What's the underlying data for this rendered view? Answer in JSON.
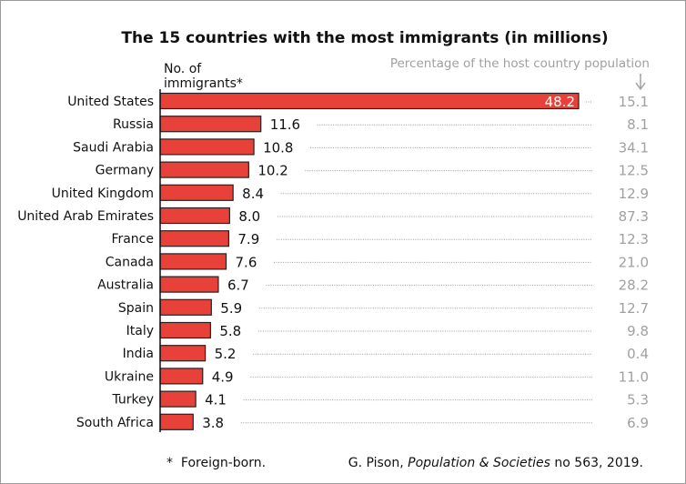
{
  "chart_data": {
    "type": "bar",
    "orientation": "horizontal",
    "title": "The 15 countries with the most immigrants (in millions)",
    "value_label": "No. of immigrants*",
    "value_label_lines": [
      "No. of",
      "immigrants*"
    ],
    "secondary_label": "Percentage of the host country population",
    "categories": [
      "United States",
      "Russia",
      "Saudi Arabia",
      "Germany",
      "United Kingdom",
      "United Arab Emirates",
      "France",
      "Canada",
      "Australia",
      "Spain",
      "Italy",
      "India",
      "Ukraine",
      "Turkey",
      "South Africa"
    ],
    "values": [
      48.2,
      11.6,
      10.8,
      10.2,
      8.4,
      8.0,
      7.9,
      7.6,
      6.7,
      5.9,
      5.8,
      5.2,
      4.9,
      4.1,
      3.8
    ],
    "value_labels": [
      "48.2",
      "11.6",
      "10.8",
      "10.2",
      "8.4",
      "8.0",
      "7.9",
      "7.6",
      "6.7",
      "5.9",
      "5.8",
      "5.2",
      "4.9",
      "4.1",
      "3.8"
    ],
    "percent_of_population": [
      "15.1",
      "8.1",
      "34.1",
      "12.5",
      "12.9",
      "87.3",
      "12.3",
      "21.0",
      "28.2",
      "12.7",
      "9.8",
      "0.4",
      "11.0",
      "5.3",
      "6.9"
    ],
    "xlim": [
      0,
      48.2
    ],
    "grid": false,
    "colors": {
      "bar": "#e8413a",
      "bar_border": "#222222",
      "secondary_text": "#a0a0a0",
      "dots": "#999999"
    },
    "footnote": "*  Foreign-born.",
    "source_plain": "G. Pison, ",
    "source_italic": "Population & Societies",
    "source_end": " no 563, 2019."
  }
}
